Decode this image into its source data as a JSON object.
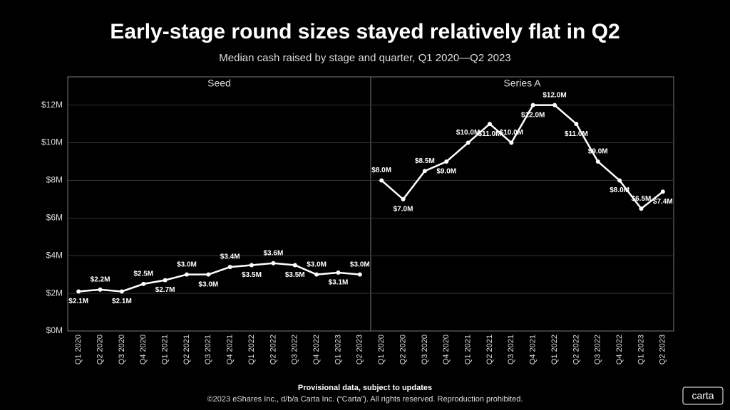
{
  "header": {
    "title": "Early-stage round sizes stayed relatively flat in Q2",
    "subtitle": "Median cash raised by stage and quarter, Q1 2020—Q2 2023"
  },
  "chart_data": [
    {
      "type": "line",
      "title": "Seed",
      "categories": [
        "Q1 2020",
        "Q2 2020",
        "Q3 2020",
        "Q4 2020",
        "Q1 2021",
        "Q2 2021",
        "Q3 2021",
        "Q4 2021",
        "Q1 2022",
        "Q2 2022",
        "Q3 2022",
        "Q4 2022",
        "Q1 2023",
        "Q2 2023"
      ],
      "values": [
        2.1,
        2.2,
        2.1,
        2.5,
        2.7,
        3.0,
        3.0,
        3.4,
        3.5,
        3.6,
        3.5,
        3.0,
        3.1,
        3.0
      ],
      "value_labels": [
        "$2.1M",
        "$2.2M",
        "$2.1M",
        "$2.5M",
        "$2.7M",
        "$3.0M",
        "$3.0M",
        "$3.4M",
        "$3.5M",
        "$3.6M",
        "$3.5M",
        "$3.0M",
        "$3.1M",
        "$3.0M"
      ],
      "color": "#ffffff",
      "ylim": [
        0,
        13.5
      ],
      "yticks": [
        {
          "value": 0,
          "label": "$0M"
        },
        {
          "value": 2,
          "label": "$2M"
        },
        {
          "value": 4,
          "label": "$4M"
        },
        {
          "value": 6,
          "label": "$6M"
        },
        {
          "value": 8,
          "label": "$8M"
        },
        {
          "value": 10,
          "label": "$10M"
        },
        {
          "value": 12,
          "label": "$12M"
        }
      ],
      "grid": true
    },
    {
      "type": "line",
      "title": "Series A",
      "categories": [
        "Q1 2020",
        "Q2 2020",
        "Q3 2020",
        "Q4 2020",
        "Q1 2021",
        "Q2 2021",
        "Q3 2021",
        "Q4 2021",
        "Q1 2022",
        "Q2 2022",
        "Q3 2022",
        "Q4 2022",
        "Q1 2023",
        "Q2 2023"
      ],
      "values": [
        8.0,
        7.0,
        8.5,
        9.0,
        10.0,
        11.0,
        10.0,
        12.0,
        12.0,
        11.0,
        9.0,
        8.0,
        6.5,
        7.4
      ],
      "value_labels": [
        "$8.0M",
        "$7.0M",
        "$8.5M",
        "$9.0M",
        "$10.0M",
        "$11.0M",
        "$10.0M",
        "$12.0M",
        "$12.0M",
        "$11.0M",
        "$9.0M",
        "$8.0M",
        "$6.5M",
        "$7.4M"
      ],
      "color": "#ffffff",
      "ylim": [
        0,
        13.5
      ],
      "yticks": [
        {
          "value": 0,
          "label": "$0M"
        },
        {
          "value": 2,
          "label": "$2M"
        },
        {
          "value": 4,
          "label": "$4M"
        },
        {
          "value": 6,
          "label": "$6M"
        },
        {
          "value": 8,
          "label": "$8M"
        },
        {
          "value": 10,
          "label": "$10M"
        },
        {
          "value": 12,
          "label": "$12M"
        }
      ],
      "grid": true
    }
  ],
  "footer": {
    "note": "Provisional data, subject to updates",
    "copyright": "©2023 eShares Inc., d/b/a Carta Inc. (“Carta”). All rights reserved. Reproduction prohibited.",
    "logo": "carta"
  }
}
